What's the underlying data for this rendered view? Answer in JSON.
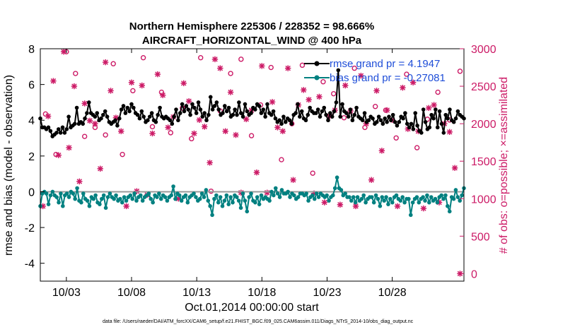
{
  "chart_data": {
    "type": "line",
    "title": "Northern Hemisphere 225306 / 228352 = 98.666%",
    "subtitle": "AIRCRAFT_HORIZONTAL_WIND @ 400 hPa",
    "xlabel": "Oct.01,2014 00:00:00 start",
    "ylabel_left": "rmse and bias (model - observation)",
    "ylabel_right": "# of obs: o=possible; ×=assimilated",
    "xlim": [
      1,
      33.5
    ],
    "ylim_left": [
      -5,
      8
    ],
    "ylim_right": [
      -100,
      3000
    ],
    "x_ticks": [
      3,
      8,
      13,
      18,
      23,
      28
    ],
    "x_tick_labels": [
      "10/03",
      "10/08",
      "10/13",
      "10/18",
      "10/23",
      "10/28"
    ],
    "y_left_ticks": [
      -4,
      -2,
      0,
      2,
      4,
      6,
      8
    ],
    "y_left_tick_labels": [
      "-4",
      "-2",
      "0",
      "2",
      "4",
      "6",
      "8"
    ],
    "y_right_ticks": [
      0,
      500,
      1000,
      1500,
      2000,
      2500,
      3000
    ],
    "y_right_tick_labels": [
      "0",
      "500",
      "1000",
      "1500",
      "2000",
      "2500",
      "3000"
    ],
    "legend": [
      {
        "name": "rmse grand pr = 4.1947",
        "color": "#000000"
      },
      {
        "name": "bias grand pr = -0.27081",
        "color": "#008080"
      }
    ],
    "series": [
      {
        "name": "rmse",
        "axis": "left",
        "color": "#000000",
        "values": [
          4.1,
          3.6,
          3.6,
          3.5,
          3.6,
          3.4,
          3.1,
          3.2,
          3.3,
          3.5,
          3.3,
          3.6,
          3.3,
          3.5,
          4.2,
          3.6,
          3.7,
          3.8,
          4.7,
          3.8,
          3.9,
          3.8,
          4.1,
          4.4,
          5.0,
          4.4,
          4.3,
          4.2,
          4.4,
          4.0,
          4.1,
          4.3,
          4.5,
          4.2,
          3.9,
          3.8,
          3.9,
          4.0,
          3.7,
          4.1,
          4.6,
          4.8,
          4.4,
          4.7,
          4.5,
          4.9,
          4.7,
          4.4,
          4.3,
          4.1,
          4.5,
          4.2,
          3.9,
          4.0,
          4.2,
          4.4,
          4.0,
          3.9,
          4.3,
          4.7,
          4.2,
          4.1,
          4.2,
          4.1,
          4.0,
          3.8,
          4.2,
          4.6,
          4.0,
          4.4,
          4.9,
          4.5,
          4.8,
          4.6,
          4.3,
          4.9,
          4.7,
          4.4,
          5.0,
          4.6,
          4.2,
          4.4,
          4.0,
          4.3,
          5.3,
          4.6,
          4.8,
          5.0,
          4.6,
          4.3,
          4.4,
          4.8,
          4.5,
          4.7,
          4.2,
          4.3,
          4.6,
          4.3,
          5.0,
          4.4,
          4.2,
          4.9,
          4.5,
          4.3,
          4.4,
          4.7,
          4.6,
          4.9,
          4.8,
          4.4,
          4.6,
          4.2,
          4.9,
          4.4,
          4.3,
          4.5,
          4.1,
          3.9,
          4.0,
          3.8,
          4.2,
          3.9,
          4.1,
          4.0,
          3.8,
          4.3,
          4.4,
          4.9,
          4.2,
          4.5,
          4.1,
          4.0,
          4.3,
          4.7,
          4.5,
          4.4,
          4.4,
          4.6,
          4.2,
          4.5,
          4.7,
          4.3,
          4.0,
          4.4,
          4.2,
          4.5,
          5.0,
          6.8,
          4.2,
          4.9,
          4.5,
          4.4,
          4.2,
          4.6,
          4.0,
          4.3,
          4.7,
          4.2,
          4.1,
          4.0,
          4.4,
          3.9,
          4.0,
          4.2,
          4.1,
          3.8,
          3.9,
          4.2,
          4.0,
          3.8,
          4.1,
          3.9,
          4.2,
          4.0,
          4.3,
          3.9,
          3.7,
          3.9,
          4.2,
          4.1,
          4.4,
          3.8,
          3.6,
          3.8,
          3.5,
          4.4,
          3.7,
          3.4,
          3.3,
          4.6,
          3.9,
          3.5,
          3.6,
          4.3,
          4.1,
          4.6,
          3.6,
          4.5,
          3.8,
          3.3,
          4.3,
          4.1,
          4.6,
          4.0,
          3.9,
          4.1,
          4.5,
          4.3,
          4.2,
          4.1
        ]
      },
      {
        "name": "bias",
        "axis": "left",
        "color": "#008080",
        "values": [
          -0.8,
          -0.1,
          0.0,
          -0.1,
          -0.7,
          -0.2,
          0.0,
          -0.2,
          -0.3,
          -0.6,
          -0.1,
          -0.8,
          -0.2,
          -0.1,
          -0.3,
          0.0,
          -0.1,
          -0.4,
          0.2,
          -0.5,
          -0.6,
          -0.1,
          -0.4,
          -0.5,
          -0.8,
          -0.3,
          -0.4,
          -0.2,
          -0.6,
          -0.7,
          -0.4,
          -0.2,
          -0.9,
          -0.3,
          -0.1,
          -0.3,
          -0.4,
          -0.2,
          -0.5,
          -0.4,
          -0.6,
          -0.3,
          -0.5,
          -0.3,
          -0.2,
          -0.4,
          -0.1,
          -0.5,
          -0.3,
          -0.2,
          -0.5,
          -0.3,
          -0.2,
          -0.1,
          -0.4,
          -0.6,
          -0.2,
          -0.3,
          -0.1,
          -0.4,
          -0.2,
          -0.3,
          -0.5,
          -0.3,
          -0.2,
          0.3,
          -0.4,
          -0.1,
          -0.2,
          -0.5,
          -0.3,
          -0.2,
          -0.6,
          -0.3,
          -0.2,
          -0.1,
          -0.3,
          -0.5,
          -0.4,
          -0.1,
          -0.3,
          0.1,
          -0.5,
          -0.8,
          -1.3,
          -0.4,
          -0.2,
          -0.6,
          -0.3,
          -0.8,
          -0.5,
          -0.2,
          -0.7,
          -0.3,
          -0.6,
          -0.2,
          -0.3,
          -0.5,
          -0.9,
          -0.1,
          -0.5,
          -1.1,
          -0.3,
          -0.1,
          -0.5,
          -0.6,
          -0.3,
          -0.7,
          -0.2,
          -0.4,
          -0.3,
          -0.4,
          -0.5,
          0.0,
          -0.2,
          0.2,
          -0.1,
          -0.3,
          0.1,
          -0.1,
          -0.1,
          0.0,
          -0.3,
          -0.1,
          -0.2,
          -0.4,
          -0.3,
          -0.1,
          -0.1,
          -0.2,
          -0.1,
          -0.5,
          -0.3,
          -0.2,
          -0.4,
          -0.1,
          -0.3,
          -0.1,
          -0.2,
          -0.3,
          -0.2,
          -0.5,
          -0.3,
          -0.2,
          0.2,
          0.8,
          0.2,
          0.1,
          -0.2,
          -0.1,
          -0.3,
          -0.3,
          -0.5,
          -0.3,
          -0.6,
          -0.3,
          -0.5,
          -0.4,
          -0.2,
          -0.6,
          -0.4,
          -0.3,
          -0.3,
          -0.6,
          -0.2,
          -0.4,
          -0.8,
          -0.3,
          -0.5,
          -0.3,
          -0.7,
          -0.4,
          -0.6,
          -0.3,
          -0.2,
          -0.4,
          -0.5,
          -0.3,
          -0.6,
          -0.4,
          -0.4,
          -1.3,
          -0.6,
          -0.4,
          -0.3,
          -0.6,
          -0.4,
          -0.3,
          -0.5,
          -0.2,
          -0.6,
          -0.3,
          -0.5,
          -0.4,
          -0.6,
          -0.3,
          -0.2,
          -0.4,
          -0.2,
          -0.8,
          -1.1,
          -0.3,
          -0.4,
          0.1,
          -0.3,
          -0.5,
          -0.2,
          0.2
        ]
      },
      {
        "name": "# of obs possible",
        "axis": "right",
        "color": "#cc1a66",
        "marker": "o",
        "x": [
          1.4,
          2.2,
          3,
          3.7,
          4.4,
          5.2,
          6,
          6.6,
          7.3,
          8.1,
          8.9,
          9.6,
          10.3,
          11,
          11.9,
          12.6,
          13.3,
          14.1,
          14.8,
          15.6,
          16.4,
          17.2,
          17.9,
          18.7,
          19.5,
          20.3,
          21.1,
          21.9,
          22.7,
          23.5,
          24.3,
          25.1,
          25.9,
          26.7,
          27.5,
          28.3,
          29.1,
          29.9,
          30.7,
          31.5,
          32.4,
          33.2
        ],
        "values": [
          2130,
          1590,
          2960,
          2670,
          1830,
          1950,
          1850,
          2800,
          1590,
          2440,
          2880,
          1960,
          2420,
          1880,
          2210,
          1800,
          2880,
          1100,
          2170,
          2670,
          2860,
          1840,
          2250,
          2750,
          1520,
          2000,
          2780,
          1340,
          2560,
          2400,
          2080,
          2740,
          1950,
          2230,
          2180,
          1810,
          2660,
          1680,
          2060,
          2420,
          2050,
          2700
        ]
      },
      {
        "name": "# of obs assimilated",
        "axis": "right",
        "color": "#cc1a66",
        "marker": "x",
        "x": [
          1.2,
          1.6,
          2,
          2.4,
          2.8,
          3.2,
          3.6,
          4,
          4.4,
          4.8,
          5.2,
          5.6,
          6,
          6.4,
          6.8,
          7.2,
          7.6,
          8,
          8.4,
          8.8,
          9.2,
          9.6,
          10,
          10.4,
          10.8,
          11.2,
          11.6,
          12,
          12.4,
          12.8,
          13.2,
          13.6,
          14,
          14.4,
          14.8,
          15.2,
          15.6,
          16,
          16.4,
          16.8,
          17.2,
          17.6,
          18,
          18.4,
          18.8,
          19.2,
          19.6,
          20,
          20.4,
          20.8,
          21.2,
          21.6,
          22,
          22.4,
          22.8,
          23.2,
          23.6,
          24,
          24.4,
          24.8,
          25.2,
          25.6,
          26,
          26.4,
          26.8,
          27.2,
          27.6,
          28,
          28.4,
          28.8,
          29.2,
          29.6,
          30,
          30.4,
          30.8,
          31.2,
          31.6,
          32,
          32.4,
          32.8,
          33.2
        ],
        "values": [
          900,
          2100,
          2570,
          1580,
          2960,
          1680,
          2500,
          1230,
          2270,
          2040,
          2000,
          1400,
          2820,
          2440,
          2080,
          1900,
          900,
          2550,
          1100,
          2510,
          1050,
          1870,
          2660,
          2380,
          1950,
          2090,
          1000,
          2540,
          2300,
          1870,
          2050,
          1960,
          1480,
          2860,
          2740,
          1900,
          2420,
          1850,
          1080,
          2060,
          2180,
          1350,
          2770,
          1080,
          2290,
          1950,
          1900,
          2740,
          1250,
          2250,
          2450,
          2320,
          1070,
          2360,
          950,
          2100,
          2180,
          920,
          2510,
          2170,
          900,
          2640,
          2000,
          1250,
          2440,
          1640,
          2180,
          2050,
          900,
          2480,
          1930,
          2550,
          1900,
          870,
          2210,
          2250,
          950,
          2000,
          1890,
          1410,
          0
        ]
      }
    ]
  },
  "footer": {
    "data_file": "data file: /Users/raeder/DAI/ATM_forcXX/CAM6_setup/f.e21.FHIST_BGC.f09_025.CAM6assim.011/Diags_NTrS_2014-10/obs_diag_output.nc"
  }
}
